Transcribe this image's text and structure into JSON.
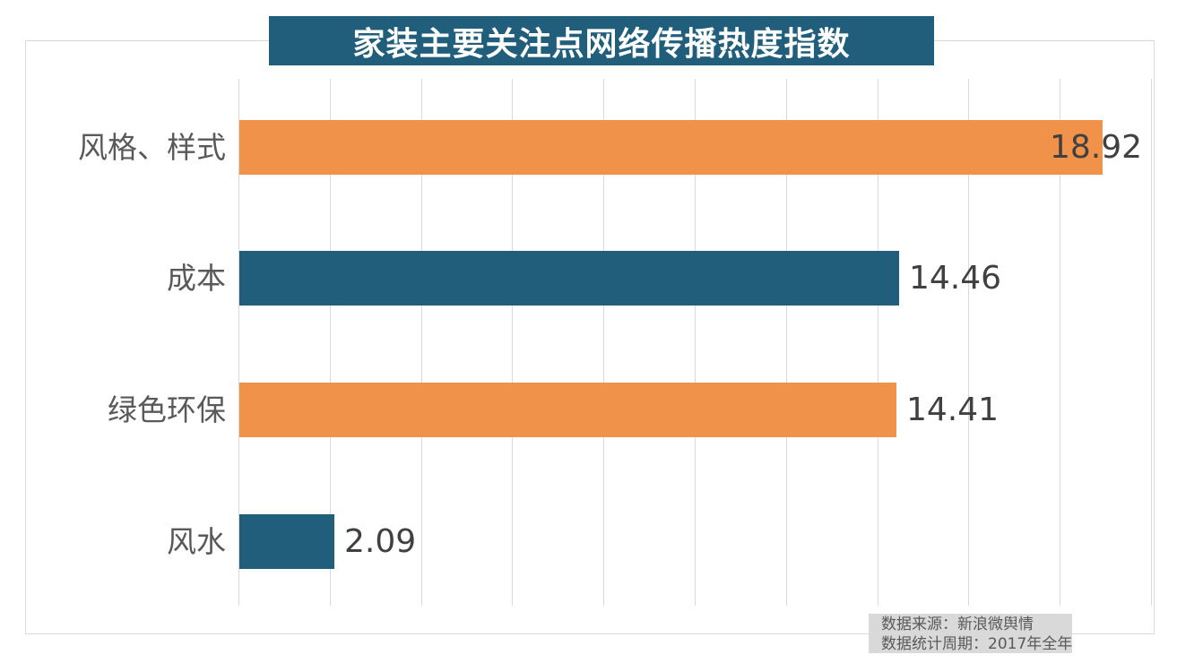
{
  "colors": {
    "title_bg": "#215e7c",
    "title_text": "#ffffff",
    "orange_bar": "#f0924a",
    "teal_bar": "#215e7c",
    "gridline": "#d9d9d9",
    "category_label": "#595959",
    "value_label": "#404040",
    "source_bg": "#d9d9d9",
    "source_text": "#595959",
    "border": "#d9d9d9"
  },
  "source": {
    "line1": "数据来源：新浪微舆情",
    "line2": "数据统计周期：2017年全年"
  },
  "chart_data": {
    "type": "bar",
    "orientation": "horizontal",
    "title": "家装主要关注点网络传播热度指数",
    "categories": [
      "风格、样式",
      "成本",
      "绿色环保",
      "风水"
    ],
    "values": [
      18.92,
      14.46,
      14.41,
      2.09
    ],
    "value_labels": [
      "18.92",
      "14.46",
      "14.41",
      "2.09"
    ],
    "bar_colors": [
      "#f0924a",
      "#215e7c",
      "#f0924a",
      "#215e7c"
    ],
    "xlabel": "",
    "ylabel": "",
    "xlim": [
      0,
      20.2
    ],
    "grid": true,
    "grid_step": 2,
    "legend": false,
    "annotations": [
      "数据来源：新浪微舆情",
      "数据统计周期：2017年全年"
    ]
  }
}
